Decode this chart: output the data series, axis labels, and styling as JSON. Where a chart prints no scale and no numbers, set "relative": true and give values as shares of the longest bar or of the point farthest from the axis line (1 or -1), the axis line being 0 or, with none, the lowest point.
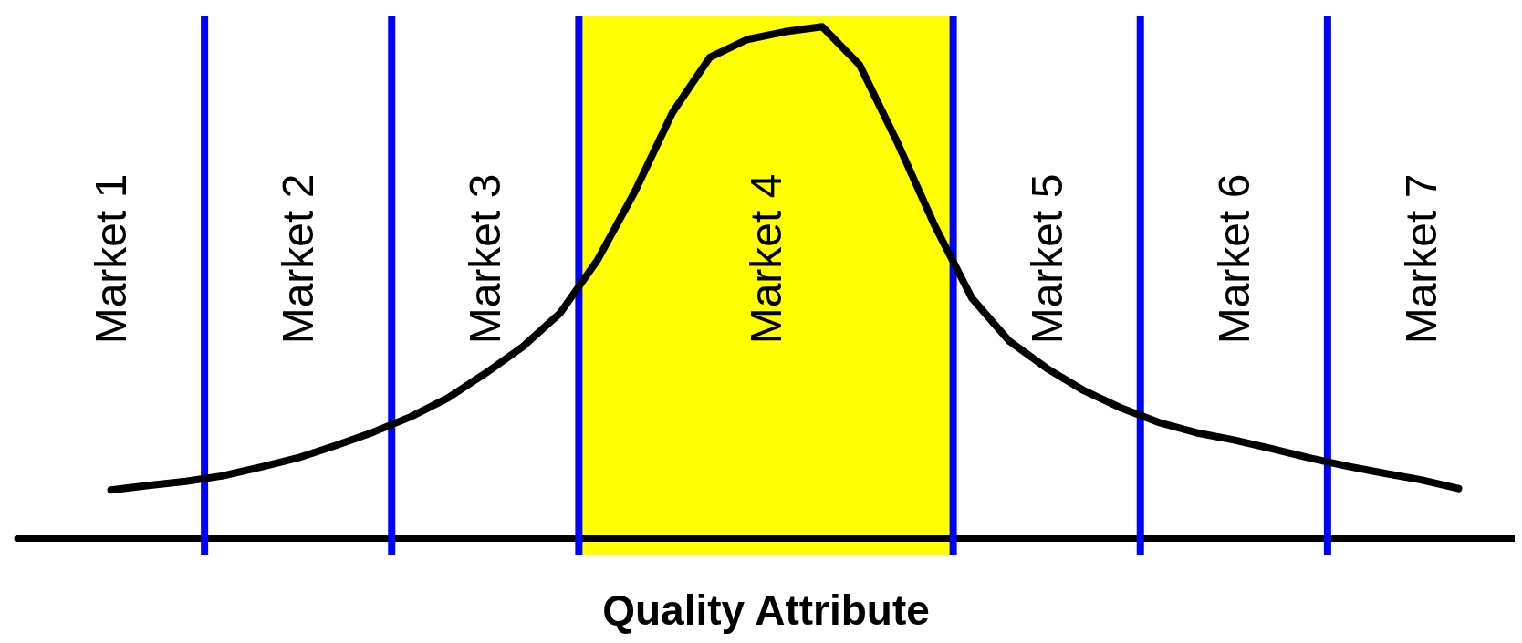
{
  "chart_data": {
    "type": "line",
    "relative": true,
    "xlabel": "Quality Attribute",
    "color": "#000000",
    "categories": [
      null,
      null,
      null,
      null,
      null,
      null,
      null,
      null,
      null,
      null,
      null,
      null,
      null,
      null,
      null,
      null,
      null,
      null,
      null,
      null,
      null,
      null,
      null,
      null,
      null,
      null,
      null,
      null,
      null,
      null,
      null,
      null,
      null,
      null,
      null,
      null,
      null,
      null,
      null,
      null
    ],
    "values": [
      null,
      null,
      0.094,
      0.103,
      0.111,
      0.122,
      0.139,
      0.157,
      0.181,
      0.207,
      0.237,
      0.274,
      0.322,
      0.374,
      0.44,
      0.544,
      0.678,
      0.832,
      0.94,
      0.975,
      0.99,
      1.0,
      0.925,
      0.775,
      0.612,
      0.469,
      0.385,
      0.332,
      0.288,
      0.254,
      0.226,
      0.206,
      0.192,
      0.175,
      0.157,
      0.141,
      0.127,
      0.114,
      0.097,
      null
    ],
    "line_style": "solid",
    "annotations": [
      "Market 1",
      "Market 2",
      "Market 3",
      "Market 4",
      "Market 5",
      "Market 6",
      "Market 7"
    ]
  }
}
